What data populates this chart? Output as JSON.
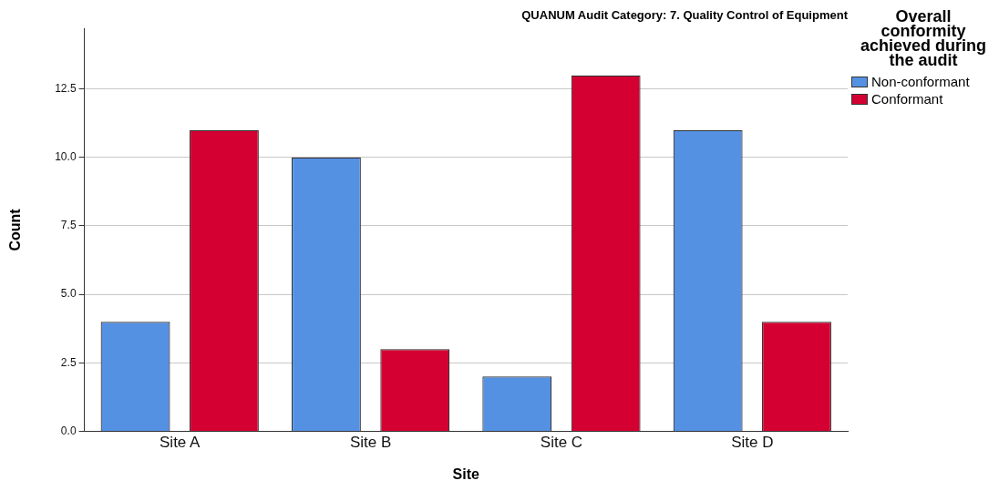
{
  "chart_data": {
    "type": "bar",
    "title": "QUANUM Audit Category: 7. Quality Control of Equipment",
    "xlabel": "Site",
    "ylabel": "Count",
    "legend_title": "Overall conformity achieved during the audit",
    "categories": [
      "Site A",
      "Site B",
      "Site C",
      "Site D"
    ],
    "series": [
      {
        "name": "Non-conformant",
        "color": "#5591e3",
        "values": [
          4,
          10,
          2,
          11
        ]
      },
      {
        "name": "Conformant",
        "color": "#d50032",
        "values": [
          11,
          3,
          13,
          4
        ]
      }
    ],
    "ylim": [
      0,
      14.7
    ],
    "yticks": [
      {
        "value": 0,
        "label": "0.0"
      },
      {
        "value": 2.5,
        "label": "2.5"
      },
      {
        "value": 5,
        "label": "5.0"
      },
      {
        "value": 7.5,
        "label": "7.5"
      },
      {
        "value": 10,
        "label": "10.0"
      },
      {
        "value": 12.5,
        "label": "12.5"
      }
    ],
    "grid": "y",
    "legend": "right"
  }
}
